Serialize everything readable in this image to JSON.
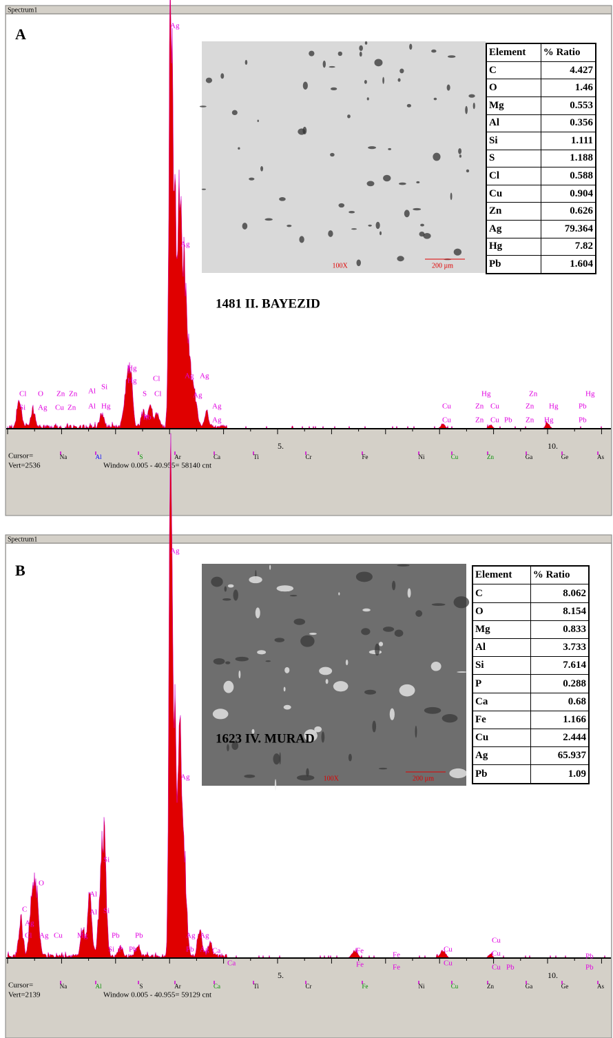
{
  "panels": [
    {
      "window_title": "Spectrum1",
      "label": "A",
      "caption": "1481  II. BAYEZID",
      "table": {
        "header": [
          "Element",
          "% Ratio"
        ],
        "rows": [
          [
            "C",
            "4.427"
          ],
          [
            "O",
            "1.46"
          ],
          [
            "Mg",
            "0.553"
          ],
          [
            "Al",
            "0.356"
          ],
          [
            "Si",
            "1.111"
          ],
          [
            "S",
            "1.188"
          ],
          [
            "Cl",
            "0.588"
          ],
          [
            "Cu",
            "0.904"
          ],
          [
            "Zn",
            "0.626"
          ],
          [
            "Ag",
            "79.364"
          ],
          [
            "Hg",
            "7.82"
          ],
          [
            "Pb",
            "1.604"
          ]
        ]
      },
      "micrograph_mag": "100X",
      "micrograph_scale": "200 µm",
      "peak_labels": [
        "Ag",
        "Ag",
        "Hg",
        "Hg",
        "Cl",
        "O",
        "Zn",
        "Zn",
        "Al",
        "Si",
        "Al",
        "Hg",
        "Cl",
        "S",
        "Cl",
        "Ag",
        "Ag",
        "Ag",
        "Si",
        "Ag",
        "Cu",
        "Zn",
        "Ag",
        "Ag",
        "Pb",
        "Cu",
        "Cu",
        "Hg",
        "Zn",
        "Cu",
        "Zn",
        "Cu",
        "Pb",
        "Zn",
        "Zn",
        "Hg",
        "Zn",
        "Hg",
        "Hg",
        "Pb",
        "Pb"
      ],
      "x_tick_labels": [
        "5.",
        "10."
      ],
      "element_markers": [
        "Na",
        "Al",
        "S",
        "Ar",
        "Ca",
        "Ti",
        "Cr",
        "Fe",
        "Ni",
        "Cu",
        "Zn",
        "Ga",
        "Ge",
        "As"
      ],
      "cursor_label": "Cursor=",
      "vert": "Vert=2536",
      "window_info": "Window 0.005 - 40.955=  58140 cnt"
    },
    {
      "window_title": "Spectrum1",
      "label": "B",
      "caption": "1623  IV. MURAD",
      "table": {
        "header": [
          "Element",
          "% Ratio"
        ],
        "rows": [
          [
            "C",
            "8.062"
          ],
          [
            "O",
            "8.154"
          ],
          [
            "Mg",
            "0.833"
          ],
          [
            "Al",
            "3.733"
          ],
          [
            "Si",
            "7.614"
          ],
          [
            "P",
            "0.288"
          ],
          [
            "Ca",
            "0.68"
          ],
          [
            "Fe",
            "1.166"
          ],
          [
            "Cu",
            "2.444"
          ],
          [
            "Ag",
            "65.937"
          ],
          [
            "Pb",
            "1.09"
          ]
        ]
      },
      "micrograph_mag": "100X",
      "micrograph_scale": "200 µm",
      "peak_labels": [
        "Ag",
        "Ag",
        "Si",
        "O",
        "Al",
        "Si",
        "Al",
        "C",
        "Ag",
        "Cl",
        "Ag",
        "Cu",
        "Mg",
        "Pb",
        "Pb",
        "Ag",
        "Ag",
        "Pb",
        "Ag",
        "Ca",
        "Si",
        "P",
        "Pb",
        "Ca",
        "Fe",
        "Fe",
        "Cu",
        "Cu",
        "Cu",
        "Pb",
        "Fe",
        "Fe",
        "Cu",
        "Cu",
        "Pb",
        "Pb"
      ],
      "x_tick_labels": [
        "5.",
        "10."
      ],
      "element_markers": [
        "Na",
        "Al",
        "S",
        "Ar",
        "Ca",
        "Ti",
        "Cr",
        "Fe",
        "Ni",
        "Cu",
        "Zn",
        "Ga",
        "Ge",
        "As"
      ],
      "cursor_label": "Cursor=",
      "vert": "Vert=2139",
      "window_info": "Window 0.005 - 40.955=  59129 cnt"
    }
  ]
}
